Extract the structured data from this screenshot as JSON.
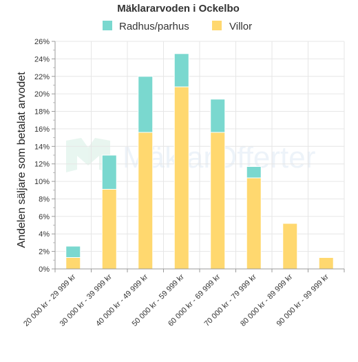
{
  "chart_data": {
    "type": "bar",
    "stacked": true,
    "title": "Mäklararvoden i Ockelbo",
    "xlabel": "",
    "ylabel": "Andelen säljare som betalat arvodet",
    "ylim": [
      0,
      26
    ],
    "ytick_step": 2,
    "ytick_labels": [
      "0%",
      "2%",
      "4%",
      "6%",
      "8%",
      "10%",
      "12%",
      "14%",
      "16%",
      "18%",
      "20%",
      "22%",
      "24%",
      "26%"
    ],
    "categories": [
      "20 000 kr - 29 999 kr",
      "30 000 kr - 39 999 kr",
      "40 000 kr - 49 999 kr",
      "50 000 kr - 59 999 kr",
      "60 000 kr - 69 999 kr",
      "70 000 kr - 79 999 kr",
      "80 000 kr - 89 999 kr",
      "90 000 kr - 99 999 kr"
    ],
    "series": [
      {
        "name": "Villor",
        "color": "#ffd86f",
        "values": [
          1.3,
          9.1,
          15.6,
          20.8,
          15.6,
          10.4,
          5.2,
          1.3
        ]
      },
      {
        "name": "Radhus/parhus",
        "color": "#7ad8cf",
        "values": [
          1.3,
          3.9,
          6.4,
          3.8,
          3.8,
          1.3,
          0,
          0
        ]
      }
    ],
    "legend_order": [
      "Radhus/parhus",
      "Villor"
    ],
    "legend_position": "top",
    "grid": true,
    "watermark": "MäklarOfferter"
  }
}
